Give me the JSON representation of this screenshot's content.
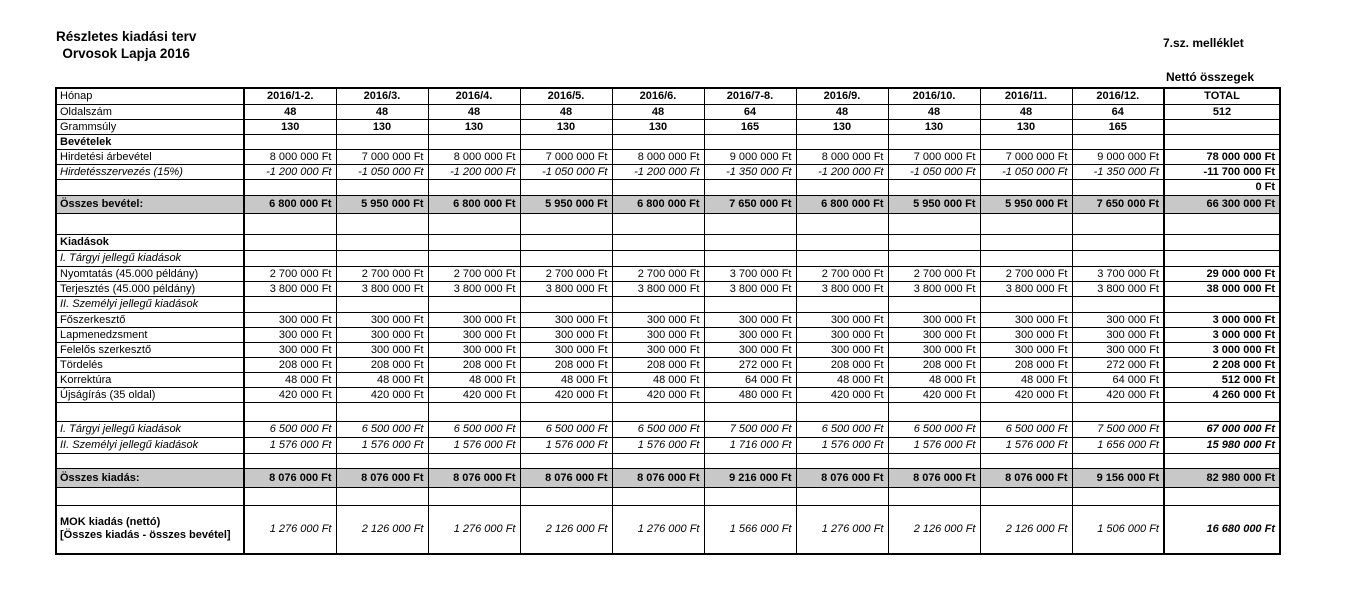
{
  "page": {
    "title_line1": "Részletes kiadási terv",
    "title_line2": "Orvosok Lapja 2016",
    "annex_label": "7.sz. melléklet",
    "net_amounts_label": "Nettó összegek"
  },
  "colors": {
    "highlight_row_bg": "#c8c8c8",
    "border": "#000000",
    "text": "#000000"
  },
  "table": {
    "columns": [
      "Hónap",
      "2016/1-2.",
      "2016/3.",
      "2016/4.",
      "2016/5.",
      "2016/6.",
      "2016/7-8.",
      "2016/9.",
      "2016/10.",
      "2016/11.",
      "2016/12.",
      "TOTAL"
    ],
    "rows": [
      {
        "type": "meta",
        "label": "Oldalszám",
        "cells": [
          "48",
          "48",
          "48",
          "48",
          "48",
          "64",
          "48",
          "48",
          "48",
          "64"
        ],
        "total": "512",
        "h": 15
      },
      {
        "type": "meta",
        "label": "Grammsúly",
        "cells": [
          "130",
          "130",
          "130",
          "130",
          "130",
          "165",
          "130",
          "130",
          "130",
          "165"
        ],
        "total": "",
        "h": 15
      },
      {
        "type": "section",
        "label": "Bevételek",
        "cells": [
          "",
          "",
          "",
          "",
          "",
          "",
          "",
          "",
          "",
          ""
        ],
        "total": "",
        "bt2": true,
        "h": 15
      },
      {
        "type": "data",
        "label": "Hirdetési árbevétel",
        "cells": [
          "8 000 000 Ft",
          "7 000 000 Ft",
          "8 000 000 Ft",
          "7 000 000 Ft",
          "8 000 000 Ft",
          "9 000 000 Ft",
          "8 000 000 Ft",
          "7 000 000 Ft",
          "7 000 000 Ft",
          "9 000 000 Ft"
        ],
        "total": "78 000 000 Ft",
        "h": 15
      },
      {
        "type": "data_italic",
        "label": "Hirdetésszervezés (15%)",
        "cells": [
          "-1 200 000 Ft",
          "-1 050 000 Ft",
          "-1 200 000 Ft",
          "-1 050 000 Ft",
          "-1 200 000 Ft",
          "-1 350 000 Ft",
          "-1 200 000 Ft",
          "-1 050 000 Ft",
          "-1 050 000 Ft",
          "-1 350 000 Ft"
        ],
        "total": "-11 700 000 Ft",
        "h": 15
      },
      {
        "type": "zero",
        "label": "",
        "cells": [
          "",
          "",
          "",
          "",
          "",
          "",
          "",
          "",
          "",
          ""
        ],
        "total": "0 Ft",
        "h": 16
      },
      {
        "type": "gray",
        "label": "Összes bevétel:",
        "cells": [
          "6 800 000 Ft",
          "5 950 000 Ft",
          "6 800 000 Ft",
          "5 950 000 Ft",
          "6 800 000 Ft",
          "7 650 000 Ft",
          "6 800 000 Ft",
          "5 950 000 Ft",
          "5 950 000 Ft",
          "7 650 000 Ft"
        ],
        "total": "66 300 000 Ft",
        "bt2": true,
        "h": 18
      },
      {
        "type": "spacer",
        "label": "",
        "cells": [
          "",
          "",
          "",
          "",
          "",
          "",
          "",
          "",
          "",
          ""
        ],
        "total": "",
        "bt2": true,
        "h": 21
      },
      {
        "type": "section",
        "label": "Kiadások",
        "cells": [
          "",
          "",
          "",
          "",
          "",
          "",
          "",
          "",
          "",
          ""
        ],
        "total": "",
        "bt2": true,
        "h": 16
      },
      {
        "type": "section_italic",
        "label": "I. Tárgyi jellegű kiadások",
        "cells": [
          "",
          "",
          "",
          "",
          "",
          "",
          "",
          "",
          "",
          ""
        ],
        "total": "",
        "bt2": true,
        "h": 16
      },
      {
        "type": "data",
        "label": "Nyomtatás (45.000 példány)",
        "cells": [
          "2 700 000 Ft",
          "2 700 000 Ft",
          "2 700 000 Ft",
          "2 700 000 Ft",
          "2 700 000 Ft",
          "3 700 000 Ft",
          "2 700 000 Ft",
          "2 700 000 Ft",
          "2 700 000 Ft",
          "3 700 000 Ft"
        ],
        "total": "29 000 000 Ft",
        "h": 15
      },
      {
        "type": "data",
        "label": "Terjesztés (45.000 példány)",
        "cells": [
          "3 800 000 Ft",
          "3 800 000 Ft",
          "3 800 000 Ft",
          "3 800 000 Ft",
          "3 800 000 Ft",
          "3 800 000 Ft",
          "3 800 000 Ft",
          "3 800 000 Ft",
          "3 800 000 Ft",
          "3 800 000 Ft"
        ],
        "total": "38 000 000 Ft",
        "h": 15
      },
      {
        "type": "section_italic",
        "label": "II. Személyi jellegű kiadások",
        "cells": [
          "",
          "",
          "",
          "",
          "",
          "",
          "",
          "",
          "",
          ""
        ],
        "total": "",
        "bt2": true,
        "h": 16
      },
      {
        "type": "data",
        "label": "Főszerkesztő",
        "cells": [
          "300 000 Ft",
          "300 000 Ft",
          "300 000 Ft",
          "300 000 Ft",
          "300 000 Ft",
          "300 000 Ft",
          "300 000 Ft",
          "300 000 Ft",
          "300 000 Ft",
          "300 000 Ft"
        ],
        "total": "3 000 000 Ft",
        "h": 15
      },
      {
        "type": "data",
        "label": "Lapmenedzsment",
        "cells": [
          "300 000 Ft",
          "300 000 Ft",
          "300 000 Ft",
          "300 000 Ft",
          "300 000 Ft",
          "300 000 Ft",
          "300 000 Ft",
          "300 000 Ft",
          "300 000 Ft",
          "300 000 Ft"
        ],
        "total": "3 000 000 Ft",
        "h": 15
      },
      {
        "type": "data",
        "label": "Felelős szerkesztő",
        "cells": [
          "300 000 Ft",
          "300 000 Ft",
          "300 000 Ft",
          "300 000 Ft",
          "300 000 Ft",
          "300 000 Ft",
          "300 000 Ft",
          "300 000 Ft",
          "300 000 Ft",
          "300 000 Ft"
        ],
        "total": "3 000 000 Ft",
        "h": 15
      },
      {
        "type": "data",
        "label": "Tördelés",
        "cells": [
          "208 000 Ft",
          "208 000 Ft",
          "208 000 Ft",
          "208 000 Ft",
          "208 000 Ft",
          "272 000 Ft",
          "208 000 Ft",
          "208 000 Ft",
          "208 000 Ft",
          "272 000 Ft"
        ],
        "total": "2 208 000 Ft",
        "h": 15
      },
      {
        "type": "data",
        "label": "Korrektúra",
        "cells": [
          "48 000 Ft",
          "48 000 Ft",
          "48 000 Ft",
          "48 000 Ft",
          "48 000 Ft",
          "64 000 Ft",
          "48 000 Ft",
          "48 000 Ft",
          "48 000 Ft",
          "64 000 Ft"
        ],
        "total": "512 000 Ft",
        "h": 15
      },
      {
        "type": "data",
        "label": "Újságírás (35 oldal)",
        "cells": [
          "420 000 Ft",
          "420 000 Ft",
          "420 000 Ft",
          "420 000 Ft",
          "420 000 Ft",
          "480 000 Ft",
          "420 000 Ft",
          "420 000 Ft",
          "420 000 Ft",
          "420 000 Ft"
        ],
        "total": "4 260 000 Ft",
        "h": 15
      },
      {
        "type": "spacer",
        "label": "",
        "cells": [
          "",
          "",
          "",
          "",
          "",
          "",
          "",
          "",
          "",
          ""
        ],
        "total": "",
        "bt2": true,
        "h": 19
      },
      {
        "type": "subtotal",
        "label": "I. Tárgyi jellegű kiadások",
        "cells": [
          "6 500 000 Ft",
          "6 500 000 Ft",
          "6 500 000 Ft",
          "6 500 000 Ft",
          "6 500 000 Ft",
          "7 500 000 Ft",
          "6 500 000 Ft",
          "6 500 000 Ft",
          "6 500 000 Ft",
          "7 500 000 Ft"
        ],
        "total": "67 000 000 Ft",
        "h": 16
      },
      {
        "type": "subtotal",
        "label": "II. Személyi jellegű kiadások",
        "cells": [
          "1 576 000 Ft",
          "1 576 000 Ft",
          "1 576 000 Ft",
          "1 576 000 Ft",
          "1 576 000 Ft",
          "1 716 000 Ft",
          "1 576 000 Ft",
          "1 576 000 Ft",
          "1 576 000 Ft",
          "1 656 000 Ft"
        ],
        "total": "15 980 000 Ft",
        "h": 16
      },
      {
        "type": "spacer",
        "label": "",
        "cells": [
          "",
          "",
          "",
          "",
          "",
          "",
          "",
          "",
          "",
          ""
        ],
        "total": "",
        "bt2": true,
        "h": 15
      },
      {
        "type": "gray",
        "label": "Összes kiadás:",
        "cells": [
          "8 076 000 Ft",
          "8 076 000 Ft",
          "8 076 000 Ft",
          "8 076 000 Ft",
          "8 076 000 Ft",
          "9 216 000 Ft",
          "8 076 000 Ft",
          "8 076 000 Ft",
          "8 076 000 Ft",
          "9 156 000 Ft"
        ],
        "total": "82 980 000 Ft",
        "bt2": true,
        "h": 19
      },
      {
        "type": "spacer",
        "label": "",
        "cells": [
          "",
          "",
          "",
          "",
          "",
          "",
          "",
          "",
          "",
          ""
        ],
        "total": "",
        "bt2": true,
        "h": 18
      },
      {
        "type": "mok",
        "label": "MOK kiadás (nettó)",
        "label2": "[Összes kiadás - összes bevétel]",
        "cells": [
          "1 276 000 Ft",
          "2 126 000 Ft",
          "1 276 000 Ft",
          "2 126 000 Ft",
          "1 276 000 Ft",
          "1 566 000 Ft",
          "1 276 000 Ft",
          "2 126 000 Ft",
          "2 126 000 Ft",
          "1 506 000 Ft"
        ],
        "total": "16 680 000 Ft",
        "bt2": true,
        "h": 48
      }
    ]
  }
}
